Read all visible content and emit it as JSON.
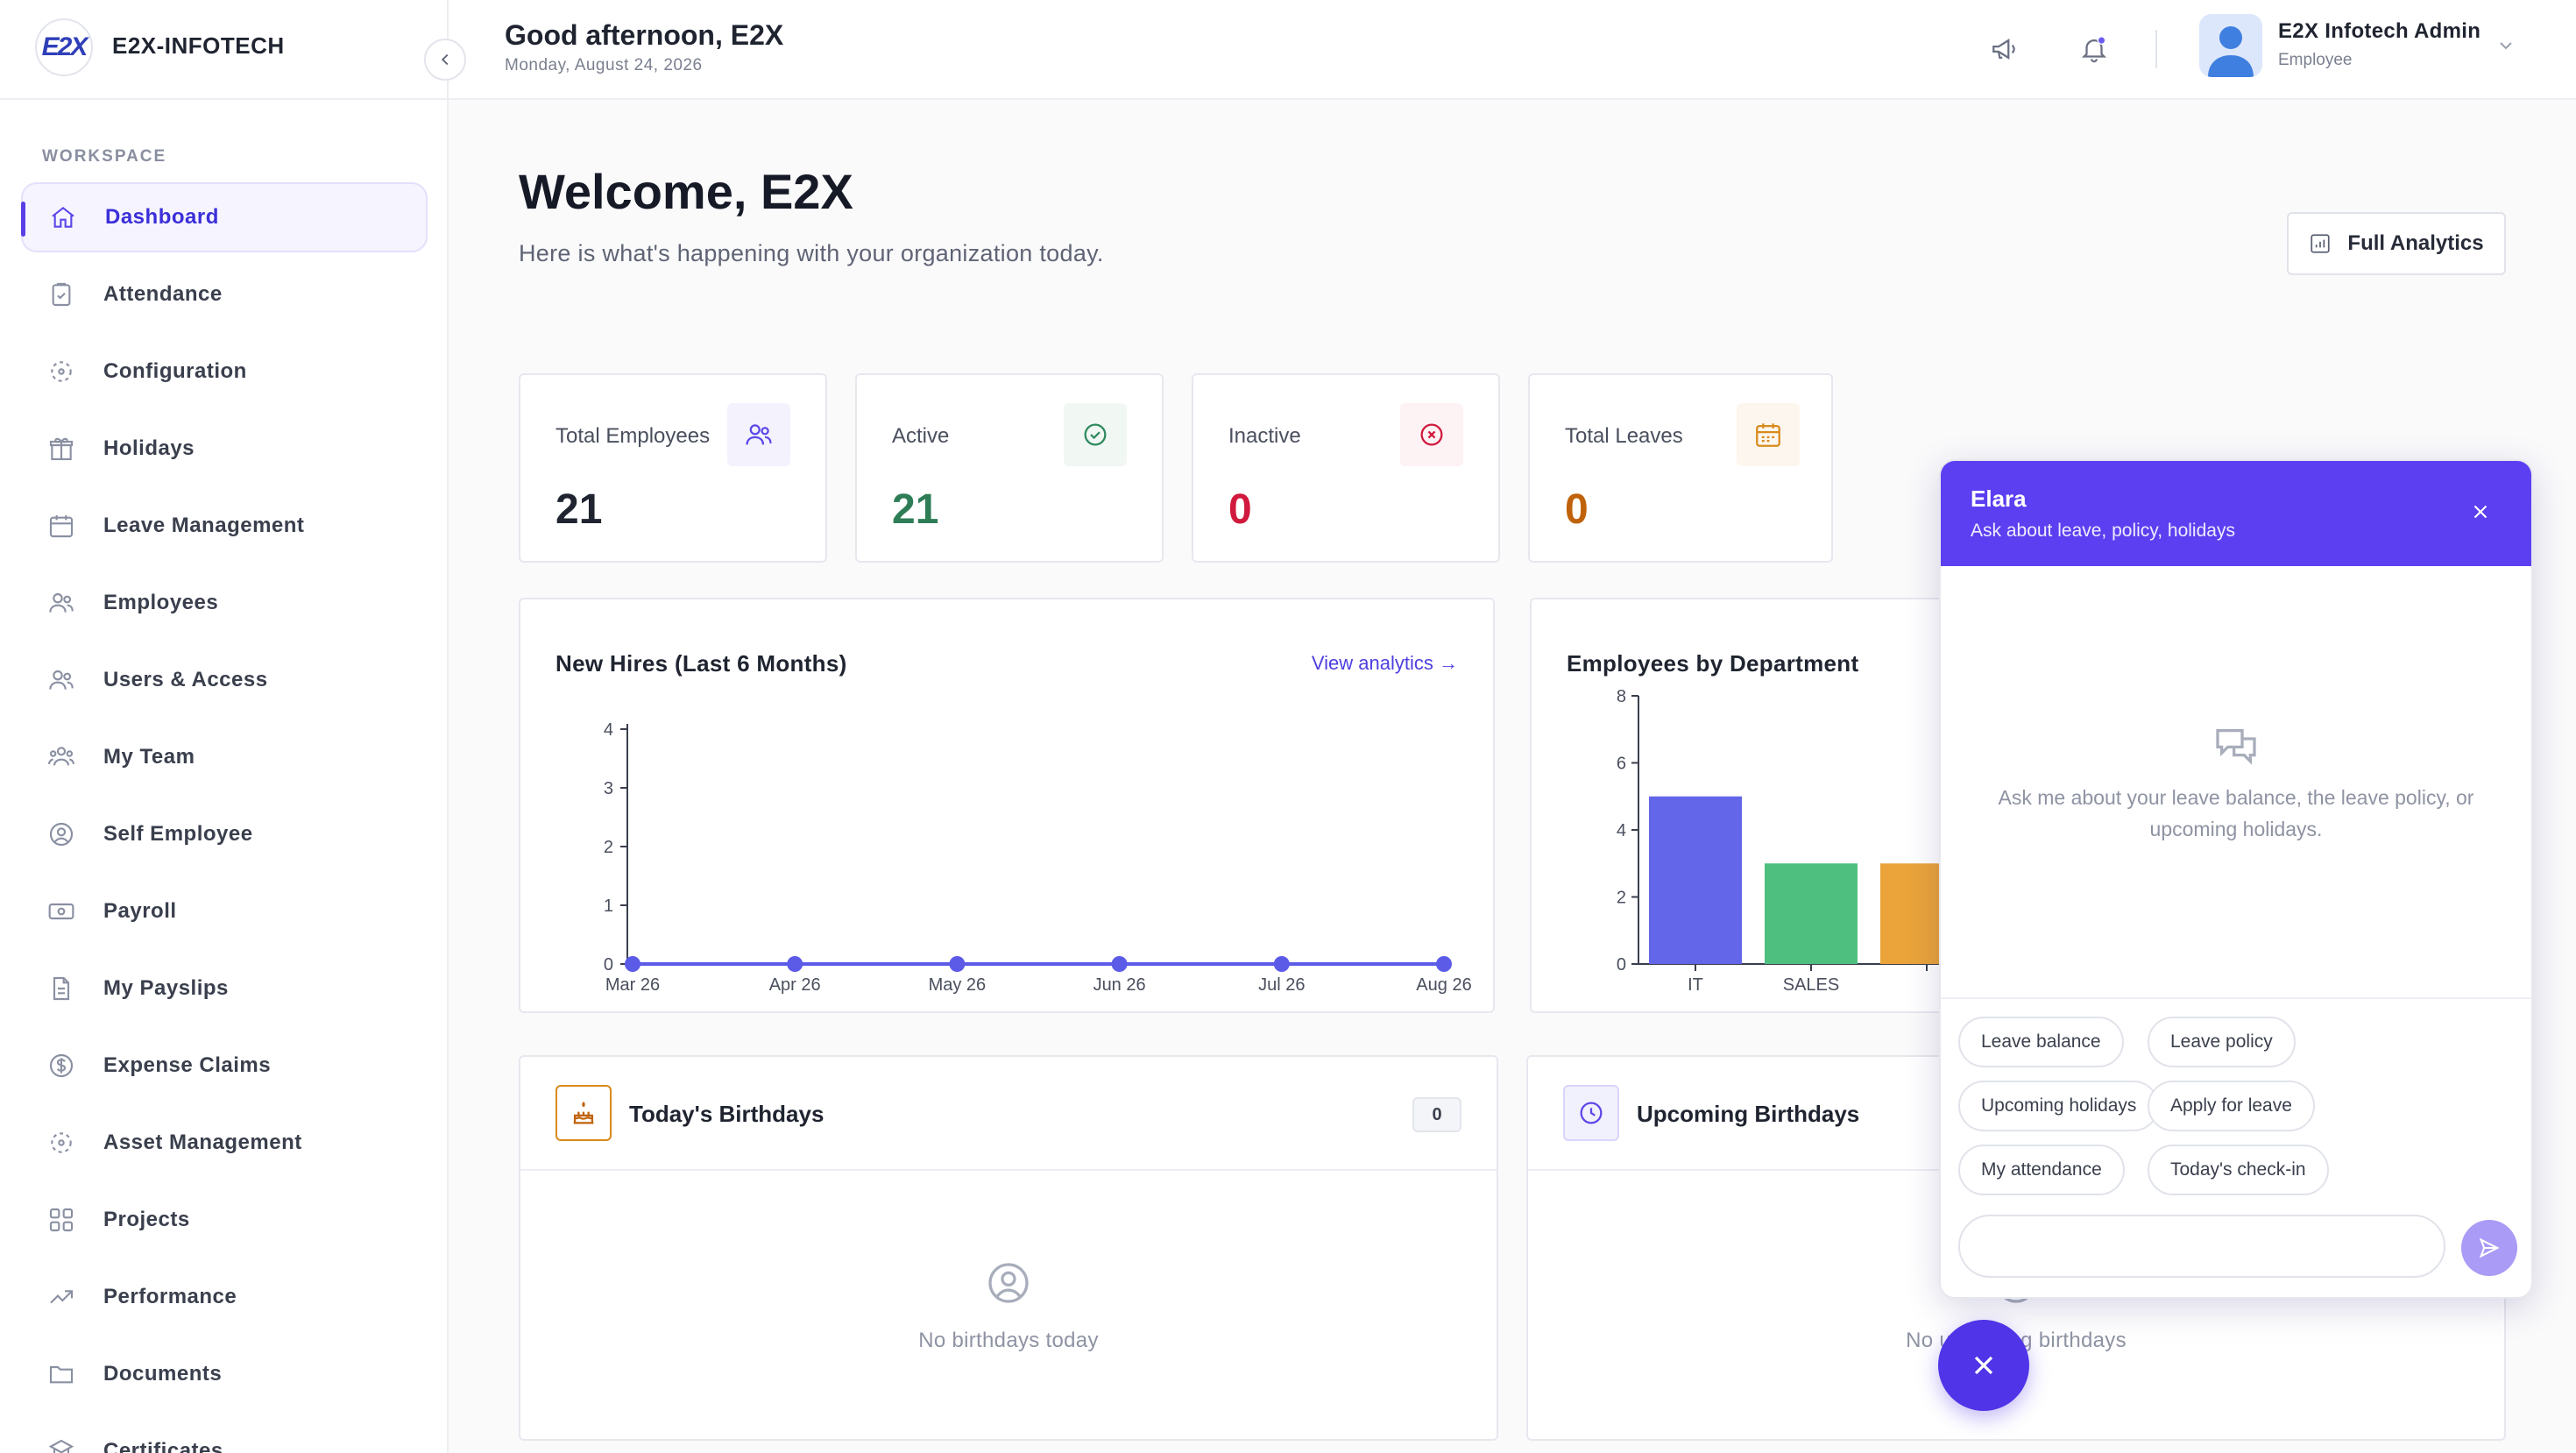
{
  "brand": {
    "logo_text": "E2X",
    "name": "E2X-INFOTECH"
  },
  "sidebar": {
    "section_label": "WORKSPACE",
    "items": [
      {
        "label": "Dashboard",
        "icon": "home-icon",
        "active": true
      },
      {
        "label": "Attendance",
        "icon": "clipboard-check-icon"
      },
      {
        "label": "Configuration",
        "icon": "settings-dashed-icon"
      },
      {
        "label": "Holidays",
        "icon": "gift-icon"
      },
      {
        "label": "Leave Management",
        "icon": "calendar-icon"
      },
      {
        "label": "Employees",
        "icon": "users-icon"
      },
      {
        "label": "Users & Access",
        "icon": "user-access-icon"
      },
      {
        "label": "My Team",
        "icon": "team-icon"
      },
      {
        "label": "Self Employee",
        "icon": "user-circle-icon"
      },
      {
        "label": "Payroll",
        "icon": "banknote-icon"
      },
      {
        "label": "My Payslips",
        "icon": "document-icon"
      },
      {
        "label": "Expense Claims",
        "icon": "dollar-circle-icon"
      },
      {
        "label": "Asset Management",
        "icon": "asset-icon"
      },
      {
        "label": "Projects",
        "icon": "grid-icon"
      },
      {
        "label": "Performance",
        "icon": "trending-up-icon"
      },
      {
        "label": "Documents",
        "icon": "folder-icon"
      },
      {
        "label": "Certificates",
        "icon": "certificate-icon"
      }
    ]
  },
  "header": {
    "greeting": "Good afternoon, E2X",
    "date": "Monday, August 24, 2026",
    "user": {
      "name": "E2X Infotech Admin",
      "role": "Employee"
    }
  },
  "main": {
    "welcome": "Welcome, E2X",
    "subtitle": "Here is what's happening with your organization today.",
    "full_analytics_label": "Full Analytics",
    "stats": [
      {
        "label": "Total Employees",
        "value": "21",
        "color": "#1f2430",
        "icon": "users-icon"
      },
      {
        "label": "Active",
        "value": "21",
        "color": "#2e7d57",
        "icon": "check-circle-icon"
      },
      {
        "label": "Inactive",
        "value": "0",
        "color": "#d0193c",
        "icon": "x-circle-icon"
      },
      {
        "label": "Total Leaves",
        "value": "0",
        "color": "#c0620a",
        "icon": "calendar-icon"
      }
    ],
    "new_hires": {
      "title": "New Hires (Last 6 Months)",
      "link": "View analytics →"
    },
    "departments": {
      "title": "Employees by Department"
    },
    "todays_birthdays": {
      "title": "Today's Birthdays",
      "count": "0",
      "empty": "No birthdays today"
    },
    "upcoming_birthdays": {
      "title": "Upcoming Birthdays",
      "empty": "No upcoming birthdays"
    }
  },
  "chart_data": [
    {
      "type": "line",
      "title": "New Hires (Last 6 Months)",
      "x": [
        "Mar 26",
        "Apr 26",
        "May 26",
        "Jun 26",
        "Jul 26",
        "Aug 26"
      ],
      "series": [
        {
          "values": [
            0,
            0,
            0,
            0,
            0,
            0
          ]
        }
      ],
      "y_ticks": [
        0,
        1,
        2,
        3,
        4
      ],
      "ylim": [
        0,
        4
      ],
      "color": "#5b5be8",
      "grid": false
    },
    {
      "type": "bar",
      "title": "Employees by Department",
      "categories": [
        "IT",
        "SALES",
        ""
      ],
      "values": [
        5,
        3,
        3
      ],
      "colors": [
        "#6366e8",
        "#4fbf7f",
        "#eaa43a"
      ],
      "y_ticks": [
        0,
        2,
        4,
        6,
        8
      ],
      "ylim": [
        0,
        8
      ],
      "grid": false
    }
  ],
  "chat": {
    "name": "Elara",
    "subtitle": "Ask about leave, policy, holidays",
    "empty": "Ask me about your leave balance, the leave policy, or upcoming holidays.",
    "chips": [
      "Leave balance",
      "Leave policy",
      "Upcoming holidays",
      "Apply for leave",
      "My attendance",
      "Today's check-in"
    ],
    "input_placeholder": ""
  },
  "colors": {
    "accent": "#5b3ff0",
    "fab": "#4f34e8"
  }
}
